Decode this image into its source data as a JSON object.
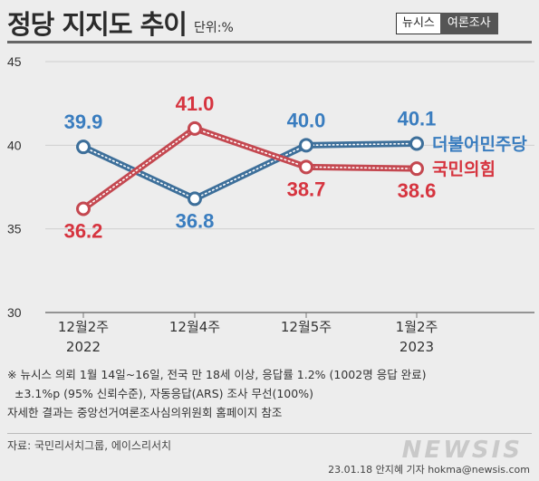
{
  "header": {
    "title": "정당 지지도 추이",
    "unit": "단위:%"
  },
  "brand": {
    "primary": "뉴시스",
    "secondary": "여론조사"
  },
  "chart_data": {
    "type": "line",
    "categories": [
      "12월2주\n2022",
      "12월4주",
      "12월5주",
      "1월2주\n2023"
    ],
    "ylim": [
      30,
      45
    ],
    "yticks": [
      30,
      35,
      40,
      45
    ],
    "series": [
      {
        "name": "더불어민주당",
        "color": "#3d6f9a",
        "labelColor": "#3a7dbf",
        "values": [
          39.9,
          36.8,
          40.0,
          40.1
        ],
        "labels": [
          "39.9",
          "36.8",
          "40.0",
          "40.1"
        ]
      },
      {
        "name": "국민의힘",
        "color": "#c44850",
        "labelColor": "#d6343f",
        "values": [
          36.2,
          41.0,
          38.7,
          38.6
        ],
        "labels": [
          "36.2",
          "41.0",
          "38.7",
          "38.6"
        ]
      }
    ],
    "grid": true,
    "legend": "right"
  },
  "notes": {
    "line1": "※ 뉴시스 의뢰 1월 14일~16일, 전국 만 18세 이상, 응답률 1.2% (1002명 응답 완료)",
    "line2": "±3.1%p (95% 신뢰수준), 자동응답(ARS) 조사 무선(100%)",
    "line3": "자세한 결과는 중앙선거여론조사심의위원회 홈페이지 참조"
  },
  "source": "자료: 국민리서치그룹, 에이스리서치",
  "watermark": "NEWSIS",
  "credit": "23.01.18 안지혜 기자 hokma@newsis.com"
}
